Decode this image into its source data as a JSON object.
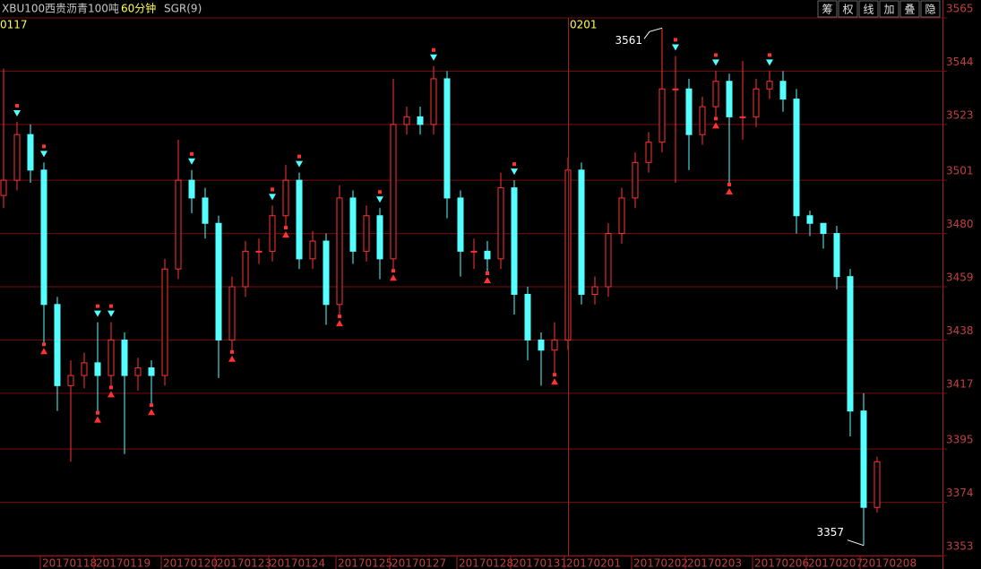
{
  "header": {
    "symbol": "XBU100",
    "name": "西贵沥青100吨",
    "period": "60分钟",
    "indicator": "SGR(9)",
    "buttons": [
      "筹",
      "权",
      "线",
      "加",
      "叠",
      "隐"
    ]
  },
  "chart_data": {
    "type": "candlestick",
    "up_color": "#ff3232",
    "down_color": "#54ffff",
    "grid_color": "#7a0c0c",
    "axis_label_color": "#c04040",
    "ylim": [
      3353,
      3565
    ],
    "yticks": [
      3353,
      3374,
      3395,
      3417,
      3438,
      3459,
      3480,
      3501,
      3523,
      3544,
      3565
    ],
    "grid": true,
    "categories": [
      null,
      null,
      null,
      "20170118",
      null,
      null,
      null,
      "20170119",
      null,
      null,
      null,
      null,
      "20170120",
      null,
      null,
      null,
      "20170123",
      null,
      null,
      null,
      "20170124",
      null,
      null,
      null,
      null,
      "20170125",
      null,
      null,
      null,
      "20170127",
      null,
      null,
      null,
      null,
      "20170128",
      null,
      null,
      null,
      "20170131",
      null,
      null,
      null,
      "20170201",
      null,
      null,
      null,
      null,
      "20170202",
      null,
      null,
      null,
      "20170203",
      null,
      null,
      null,
      null,
      "20170206",
      null,
      null,
      null,
      "20170207",
      null,
      null,
      null,
      "20170208",
      null
    ],
    "top_labels": [
      "0117",
      null,
      null,
      null,
      null,
      null,
      null,
      null,
      null,
      null,
      null,
      null,
      null,
      null,
      null,
      null,
      null,
      null,
      null,
      null,
      null,
      null,
      null,
      null,
      null,
      null,
      null,
      null,
      null,
      null,
      null,
      null,
      null,
      null,
      null,
      null,
      null,
      null,
      null,
      null,
      null,
      null,
      "0201",
      null,
      null,
      null,
      null,
      null,
      null,
      null,
      null,
      null,
      null,
      null,
      null,
      null,
      null,
      null,
      null,
      null,
      null,
      null,
      null,
      null,
      null,
      null
    ],
    "open": [
      3495,
      3501,
      3519,
      3505,
      3452,
      3420,
      3424,
      3429,
      3424,
      3438,
      3424,
      3427,
      3424,
      3466,
      3501,
      3494,
      3484,
      3438,
      3459,
      3473,
      3473,
      3487,
      3501,
      3470,
      3477,
      3452,
      3494,
      3473,
      3487,
      3470,
      3523,
      3526,
      3523,
      3541,
      3494,
      3473,
      3473,
      3470,
      3498,
      3456,
      3438,
      3434,
      3438,
      3505,
      3456,
      3459,
      3480,
      3494,
      3508,
      3516,
      3537,
      3537,
      3519,
      3530,
      3540,
      3526,
      3526,
      3537,
      3540,
      3533,
      3487,
      3484,
      3480,
      3463,
      3410,
      3372
    ],
    "close": [
      3501,
      3519,
      3505,
      3452,
      3420,
      3424,
      3429,
      3424,
      3438,
      3424,
      3427,
      3424,
      3466,
      3501,
      3494,
      3484,
      3438,
      3459,
      3473,
      3473,
      3487,
      3501,
      3470,
      3477,
      3452,
      3494,
      3473,
      3487,
      3470,
      3523,
      3526,
      3523,
      3541,
      3494,
      3473,
      3473,
      3470,
      3498,
      3456,
      3438,
      3434,
      3438,
      3505,
      3456,
      3459,
      3480,
      3494,
      3508,
      3516,
      3537,
      3537,
      3519,
      3530,
      3540,
      3526,
      3526,
      3537,
      3540,
      3533,
      3487,
      3484,
      3480,
      3463,
      3410,
      3372,
      3390
    ],
    "high": [
      3545,
      3524,
      3523,
      3508,
      3455,
      3430,
      3433,
      3445,
      3445,
      3441,
      3431,
      3430,
      3470,
      3517,
      3505,
      3498,
      3487,
      3463,
      3477,
      3478,
      3491,
      3507,
      3504,
      3481,
      3480,
      3499,
      3497,
      3491,
      3490,
      3541,
      3530,
      3530,
      3546,
      3544,
      3497,
      3478,
      3477,
      3504,
      3501,
      3459,
      3441,
      3445,
      3510,
      3508,
      3463,
      3484,
      3498,
      3512,
      3520,
      3561,
      3550,
      3541,
      3534,
      3544,
      3543,
      3548,
      3541,
      3544,
      3544,
      3537,
      3489,
      3484,
      3483,
      3466,
      3417,
      3392
    ],
    "low": [
      3490,
      3497,
      3500,
      3437,
      3410,
      3390,
      3419,
      3410,
      3420,
      3393,
      3418,
      3413,
      3420,
      3462,
      3488,
      3478,
      3423,
      3434,
      3455,
      3468,
      3469,
      3483,
      3466,
      3466,
      3444,
      3448,
      3468,
      3469,
      3462,
      3466,
      3519,
      3519,
      3519,
      3486,
      3463,
      3466,
      3465,
      3466,
      3448,
      3430,
      3420,
      3425,
      3434,
      3452,
      3452,
      3455,
      3476,
      3490,
      3504,
      3512,
      3500,
      3505,
      3515,
      3526,
      3500,
      3517,
      3522,
      3533,
      3528,
      3480,
      3479,
      3474,
      3458,
      3400,
      3357,
      3370
    ],
    "buy_signal": [
      false,
      false,
      false,
      true,
      false,
      false,
      false,
      true,
      true,
      false,
      false,
      true,
      false,
      false,
      false,
      false,
      false,
      true,
      false,
      false,
      false,
      true,
      false,
      false,
      false,
      true,
      false,
      false,
      false,
      true,
      false,
      false,
      false,
      false,
      false,
      false,
      true,
      false,
      false,
      false,
      false,
      true,
      false,
      false,
      false,
      false,
      false,
      false,
      false,
      false,
      false,
      false,
      false,
      true,
      true,
      false,
      false,
      false,
      false,
      false,
      false,
      false,
      false,
      false,
      false,
      false
    ],
    "sell_signal": [
      false,
      true,
      false,
      true,
      false,
      false,
      false,
      true,
      true,
      false,
      false,
      false,
      false,
      false,
      true,
      false,
      false,
      false,
      false,
      false,
      true,
      false,
      true,
      false,
      false,
      false,
      false,
      false,
      true,
      false,
      false,
      false,
      true,
      false,
      false,
      false,
      false,
      false,
      true,
      false,
      false,
      false,
      false,
      false,
      false,
      false,
      false,
      false,
      false,
      false,
      true,
      false,
      false,
      true,
      false,
      false,
      false,
      true,
      false,
      false,
      false,
      false,
      false,
      false,
      false,
      false
    ]
  }
}
